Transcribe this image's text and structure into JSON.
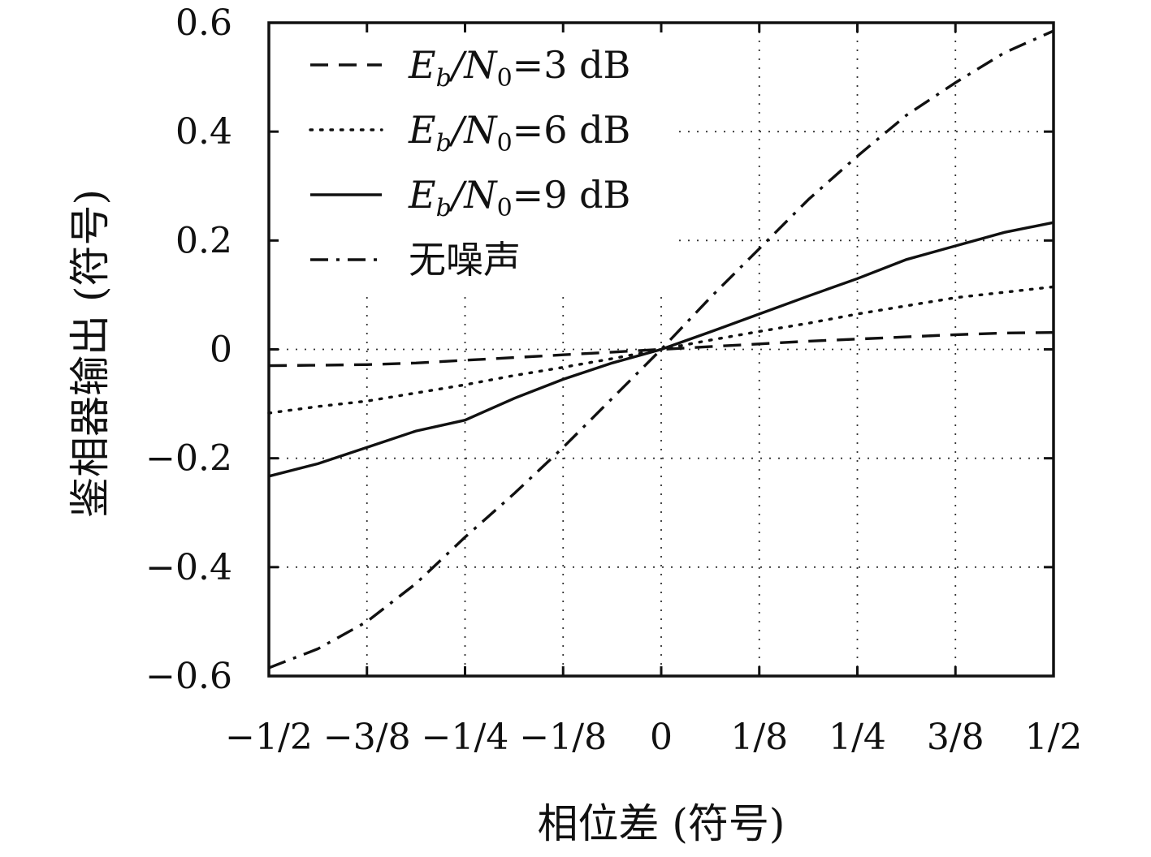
{
  "chart_data": {
    "type": "line",
    "xlabel": "相位差 (符号)",
    "ylabel": "鉴相器输出 (符号)",
    "xlim": [
      -0.5,
      0.5
    ],
    "ylim": [
      -0.6,
      0.6
    ],
    "xticks": [
      -0.5,
      -0.375,
      -0.25,
      -0.125,
      0,
      0.125,
      0.25,
      0.375,
      0.5
    ],
    "xtick_labels": [
      "−1/2",
      "−3/8",
      "−1/4",
      "−1/8",
      "0",
      "1/8",
      "1/4",
      "3/8",
      "1/2"
    ],
    "yticks": [
      0.6,
      0.4,
      0.2,
      0,
      -0.2,
      -0.4,
      -0.6
    ],
    "ytick_labels": [
      "0.6",
      "0.4",
      "0.2",
      "0",
      "−0.2",
      "−0.4",
      "−0.6"
    ],
    "grid": true,
    "legend_position": "top-left",
    "x": [
      -0.5,
      -0.4375,
      -0.375,
      -0.3125,
      -0.25,
      -0.1875,
      -0.125,
      -0.0625,
      0,
      0.0625,
      0.125,
      0.1875,
      0.25,
      0.3125,
      0.375,
      0.4375,
      0.5
    ],
    "series": [
      {
        "name_parts": [
          "E",
          "b",
          "/N",
          "0",
          "=3 dB"
        ],
        "style": "dashed",
        "values": [
          -0.03,
          -0.029,
          -0.028,
          -0.025,
          -0.02,
          -0.015,
          -0.01,
          -0.005,
          0,
          0.005,
          0.01,
          0.015,
          0.019,
          0.023,
          0.027,
          0.03,
          0.031
        ]
      },
      {
        "name_parts": [
          "E",
          "b",
          "/N",
          "0",
          "=6 dB"
        ],
        "style": "dotted",
        "values": [
          -0.117,
          -0.105,
          -0.095,
          -0.08,
          -0.065,
          -0.048,
          -0.033,
          -0.017,
          0,
          0.017,
          0.033,
          0.048,
          0.065,
          0.08,
          0.095,
          0.105,
          0.115
        ]
      },
      {
        "name_parts": [
          "E",
          "b",
          "/N",
          "0",
          "=9 dB"
        ],
        "style": "solid",
        "values": [
          -0.233,
          -0.21,
          -0.18,
          -0.15,
          -0.13,
          -0.09,
          -0.055,
          -0.025,
          0,
          0.032,
          0.065,
          0.098,
          0.13,
          0.165,
          0.19,
          0.215,
          0.233
        ]
      },
      {
        "name": "无噪声",
        "style": "dashdot",
        "values": [
          -0.585,
          -0.55,
          -0.5,
          -0.43,
          -0.345,
          -0.265,
          -0.18,
          -0.09,
          0,
          0.095,
          0.185,
          0.275,
          0.355,
          0.43,
          0.49,
          0.545,
          0.585
        ]
      }
    ]
  }
}
